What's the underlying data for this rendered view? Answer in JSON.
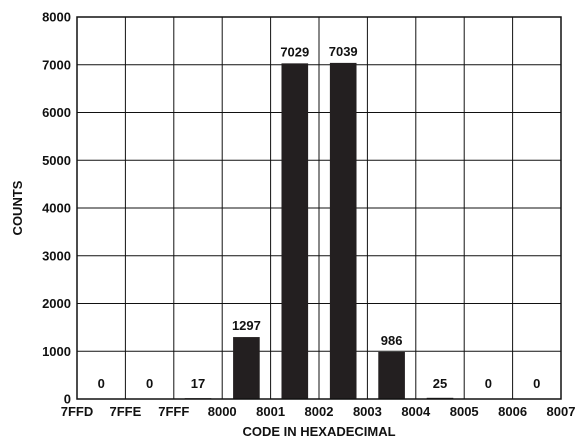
{
  "chart_data": {
    "type": "bar",
    "title": "",
    "xlabel": "CODE IN HEXADECIMAL",
    "ylabel": "COUNTS",
    "ylim": [
      0,
      8000
    ],
    "y_ticks": [
      "0",
      "1000",
      "2000",
      "3000",
      "4000",
      "5000",
      "6000",
      "7000",
      "8000"
    ],
    "x_tick_labels": [
      "7FFD",
      "7FFE",
      "7FFF",
      "8000",
      "8001",
      "8002",
      "8003",
      "8004",
      "8005",
      "8006",
      "8007"
    ],
    "categories": [
      "7FFD–7FFE",
      "7FFE–7FFF",
      "7FFF–8000",
      "8000–8001",
      "8001–8002",
      "8002–8003",
      "8003–8004",
      "8004–8005",
      "8005–8006",
      "8006–8007"
    ],
    "values": [
      0,
      0,
      17,
      1297,
      7029,
      7039,
      986,
      25,
      0,
      0
    ],
    "data_labels": [
      "0",
      "0",
      "17",
      "1297",
      "7029",
      "7039",
      "986",
      "25",
      "0",
      "0"
    ],
    "grid": true,
    "bar_color": "#231f20",
    "grid_color": "#111111"
  }
}
